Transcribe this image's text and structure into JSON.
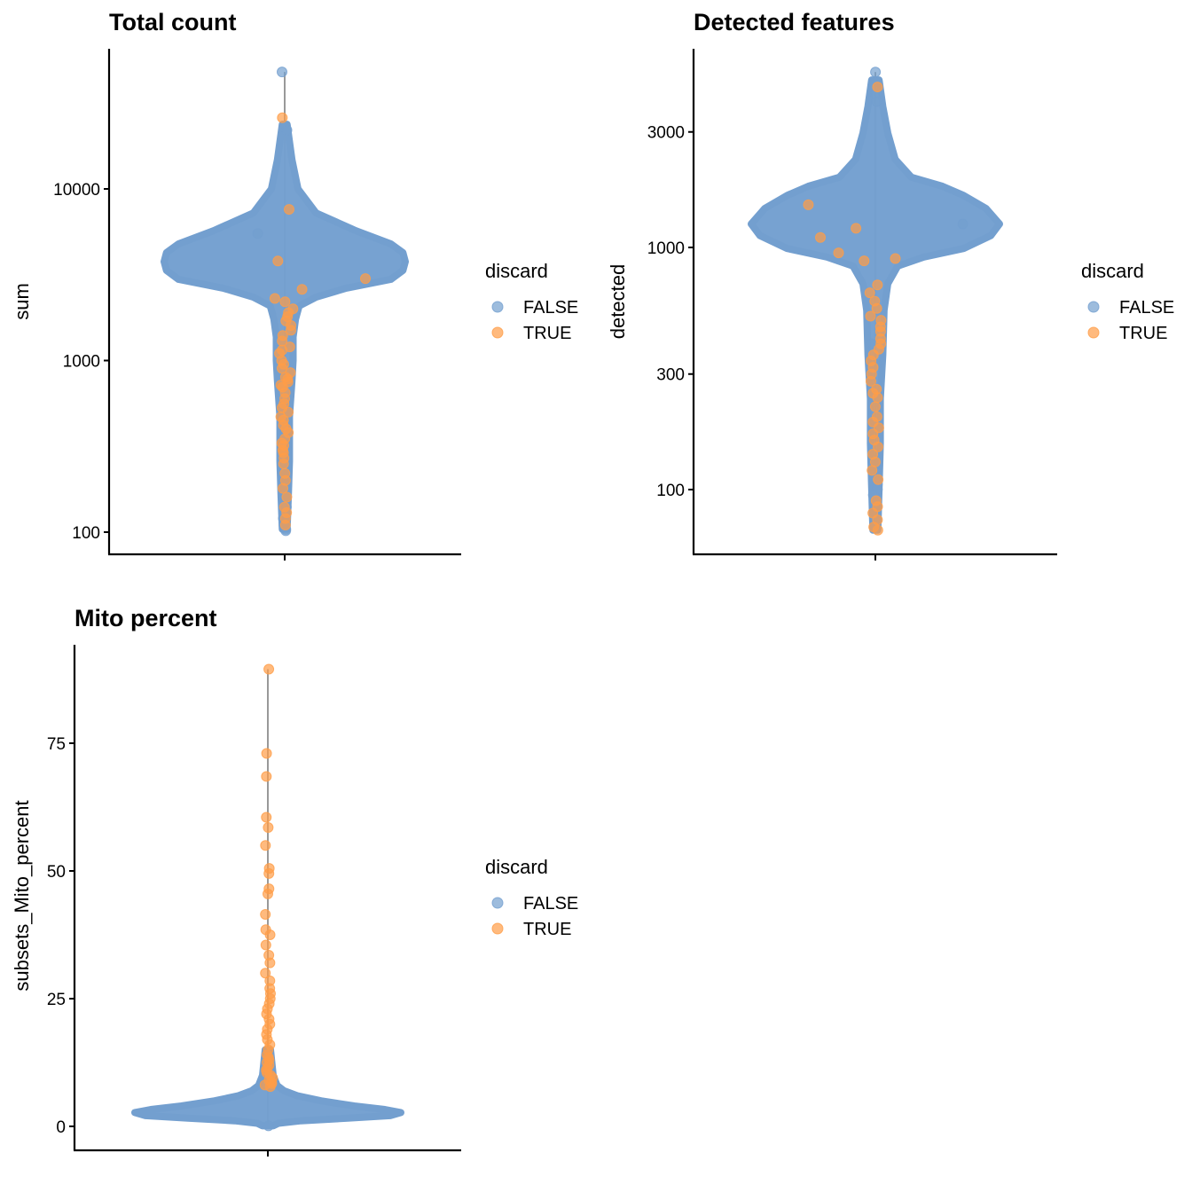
{
  "chart_data": [
    {
      "type": "violin",
      "title": "Total count",
      "ylabel": "sum",
      "yscale": "log10",
      "yticks": [
        100,
        1000,
        10000
      ],
      "ytick_labels": [
        "100",
        "1000",
        "10000"
      ],
      "grid": false,
      "legend": {
        "title": "discard",
        "position": "right",
        "entries": [
          "FALSE",
          "TRUE"
        ]
      },
      "colors": {
        "FALSE": "#739fcf",
        "TRUE": "#ff9d47",
        "range_line": "#999999"
      },
      "range": [
        102,
        48000
      ],
      "violin_profile": [
        [
          23800,
          0.02
        ],
        [
          14800,
          0.06
        ],
        [
          10000,
          0.11
        ],
        [
          7240,
          0.26
        ],
        [
          5710,
          0.59
        ],
        [
          4780,
          0.88
        ],
        [
          4250,
          0.98
        ],
        [
          3770,
          1.0
        ],
        [
          3350,
          0.98
        ],
        [
          2970,
          0.88
        ],
        [
          2640,
          0.51
        ],
        [
          2340,
          0.26
        ],
        [
          2080,
          0.12
        ],
        [
          1740,
          0.09
        ],
        [
          1370,
          0.07
        ],
        [
          1000,
          0.07
        ],
        [
          760,
          0.06
        ],
        [
          470,
          0.04
        ],
        [
          259,
          0.04
        ],
        [
          161,
          0.03
        ],
        [
          104,
          0.02
        ]
      ],
      "points": {
        "TRUE": [
          26000,
          7600,
          3800,
          3000,
          2600,
          2300,
          2200,
          2000,
          1900,
          1800,
          1700,
          1600,
          1500,
          1400,
          1300,
          1200,
          1150,
          1100,
          1000,
          950,
          900,
          850,
          800,
          780,
          750,
          720,
          700,
          650,
          600,
          560,
          530,
          500,
          470,
          450,
          420,
          400,
          380,
          350,
          330,
          320,
          300,
          290,
          270,
          250,
          220,
          200,
          180,
          160,
          140,
          130,
          120,
          110
        ],
        "FALSE": [
          48000,
          22000,
          5500,
          1250,
          900,
          800,
          700,
          500,
          300,
          230,
          210,
          150,
          140,
          120,
          110,
          104,
          102
        ]
      }
    },
    {
      "type": "violin",
      "title": "Detected features",
      "ylabel": "detected",
      "yscale": "log10",
      "yticks": [
        100,
        300,
        1000,
        3000
      ],
      "ytick_labels": [
        "100",
        "300",
        "1000",
        "3000"
      ],
      "grid": false,
      "legend": {
        "title": "discard",
        "position": "right",
        "entries": [
          "FALSE",
          "TRUE"
        ]
      },
      "colors": {
        "FALSE": "#739fcf",
        "TRUE": "#ff9d47",
        "range_line": "#999999"
      },
      "range": [
        68,
        5300
      ],
      "violin_profile": [
        [
          4920,
          0.03
        ],
        [
          3820,
          0.06
        ],
        [
          2970,
          0.1
        ],
        [
          2310,
          0.16
        ],
        [
          1950,
          0.29
        ],
        [
          1790,
          0.54
        ],
        [
          1640,
          0.71
        ],
        [
          1450,
          0.89
        ],
        [
          1250,
          1.0
        ],
        [
          1120,
          0.93
        ],
        [
          990,
          0.71
        ],
        [
          912,
          0.39
        ],
        [
          838,
          0.18
        ],
        [
          708,
          0.1
        ],
        [
          550,
          0.07
        ],
        [
          361,
          0.06
        ],
        [
          237,
          0.04
        ],
        [
          155,
          0.04
        ],
        [
          102,
          0.03
        ],
        [
          68,
          0.02
        ]
      ],
      "points": {
        "TRUE": [
          4600,
          1500,
          1200,
          1100,
          950,
          900,
          880,
          700,
          650,
          600,
          560,
          520,
          500,
          470,
          450,
          420,
          400,
          380,
          360,
          340,
          320,
          300,
          280,
          260,
          250,
          240,
          220,
          200,
          190,
          180,
          170,
          160,
          150,
          140,
          130,
          120,
          110,
          90,
          85,
          80,
          75,
          70,
          68
        ],
        "FALSE": [
          5300,
          4300,
          4000,
          1250,
          600,
          550,
          400,
          330,
          230,
          180,
          120,
          105,
          100,
          95
        ]
      }
    },
    {
      "type": "violin",
      "title": "Mito percent",
      "ylabel": "subsets_Mito_percent",
      "yscale": "linear",
      "yticks": [
        0,
        25,
        50,
        75
      ],
      "ytick_labels": [
        "0",
        "25",
        "50",
        "75"
      ],
      "grid": false,
      "legend": {
        "title": "discard",
        "position": "right",
        "entries": [
          "FALSE",
          "TRUE"
        ]
      },
      "colors": {
        "FALSE": "#739fcf",
        "TRUE": "#ff9d47",
        "range_line": "#999999"
      },
      "range": [
        0,
        89.5
      ],
      "violin_profile": [
        [
          15,
          0.02
        ],
        [
          10,
          0.04
        ],
        [
          8,
          0.07
        ],
        [
          7,
          0.12
        ],
        [
          6,
          0.22
        ],
        [
          5,
          0.4
        ],
        [
          4,
          0.65
        ],
        [
          3.3,
          0.88
        ],
        [
          2.7,
          1.0
        ],
        [
          2.1,
          0.92
        ],
        [
          1.6,
          0.6
        ],
        [
          1.1,
          0.25
        ],
        [
          0.6,
          0.08
        ],
        [
          0.1,
          0.04
        ]
      ],
      "points": {
        "TRUE": [
          89.5,
          73,
          68.5,
          60.5,
          58.5,
          55,
          50.5,
          49.5,
          46.5,
          45.5,
          41.5,
          38.5,
          37.5,
          35.5,
          33.5,
          32,
          30,
          28.5,
          27,
          26,
          25,
          24,
          23,
          22,
          21,
          20,
          19,
          18,
          17,
          16,
          15,
          14,
          13.5,
          13,
          12.5,
          12,
          11.5,
          11,
          10.5,
          10,
          9.5,
          9,
          8.7,
          8.4,
          8.1,
          7.8
        ],
        "FALSE": [
          0.1
        ]
      }
    }
  ]
}
